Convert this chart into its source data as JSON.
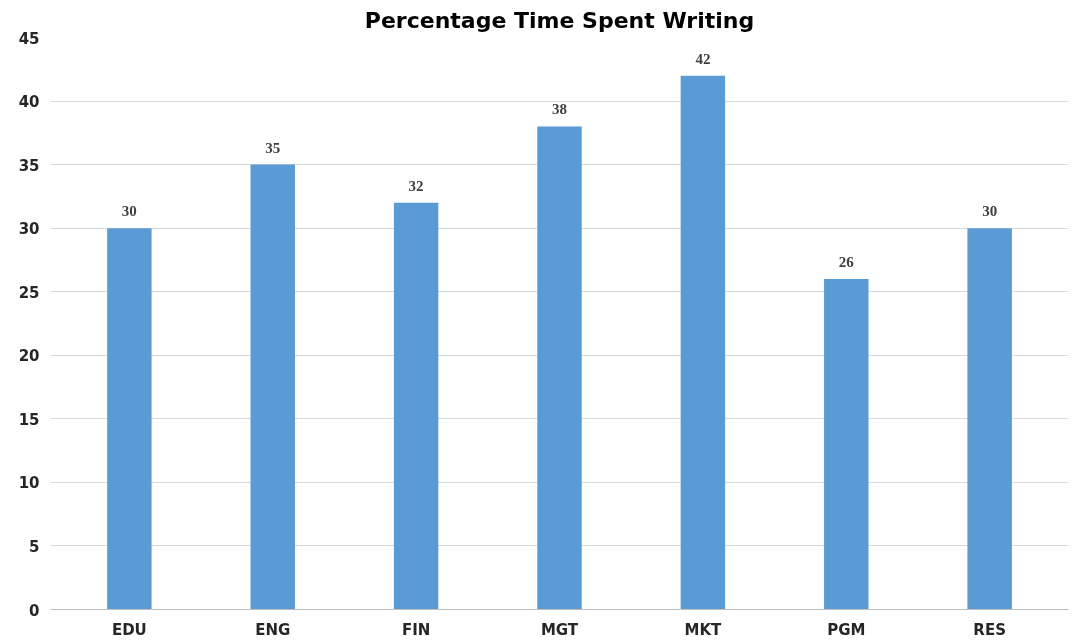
{
  "chart_data": {
    "type": "bar",
    "title": "Percentage Time Spent Writing",
    "categories": [
      "EDU",
      "ENG",
      "FIN",
      "MGT",
      "MKT",
      "PGM",
      "RES"
    ],
    "values": [
      30,
      35,
      32,
      38,
      42,
      26,
      30
    ],
    "color": "#5b9bd5",
    "ylim": [
      0,
      45
    ],
    "yticks": [
      0,
      5,
      10,
      15,
      20,
      25,
      30,
      35,
      40,
      45
    ],
    "grid": "y",
    "data_labels": true
  }
}
